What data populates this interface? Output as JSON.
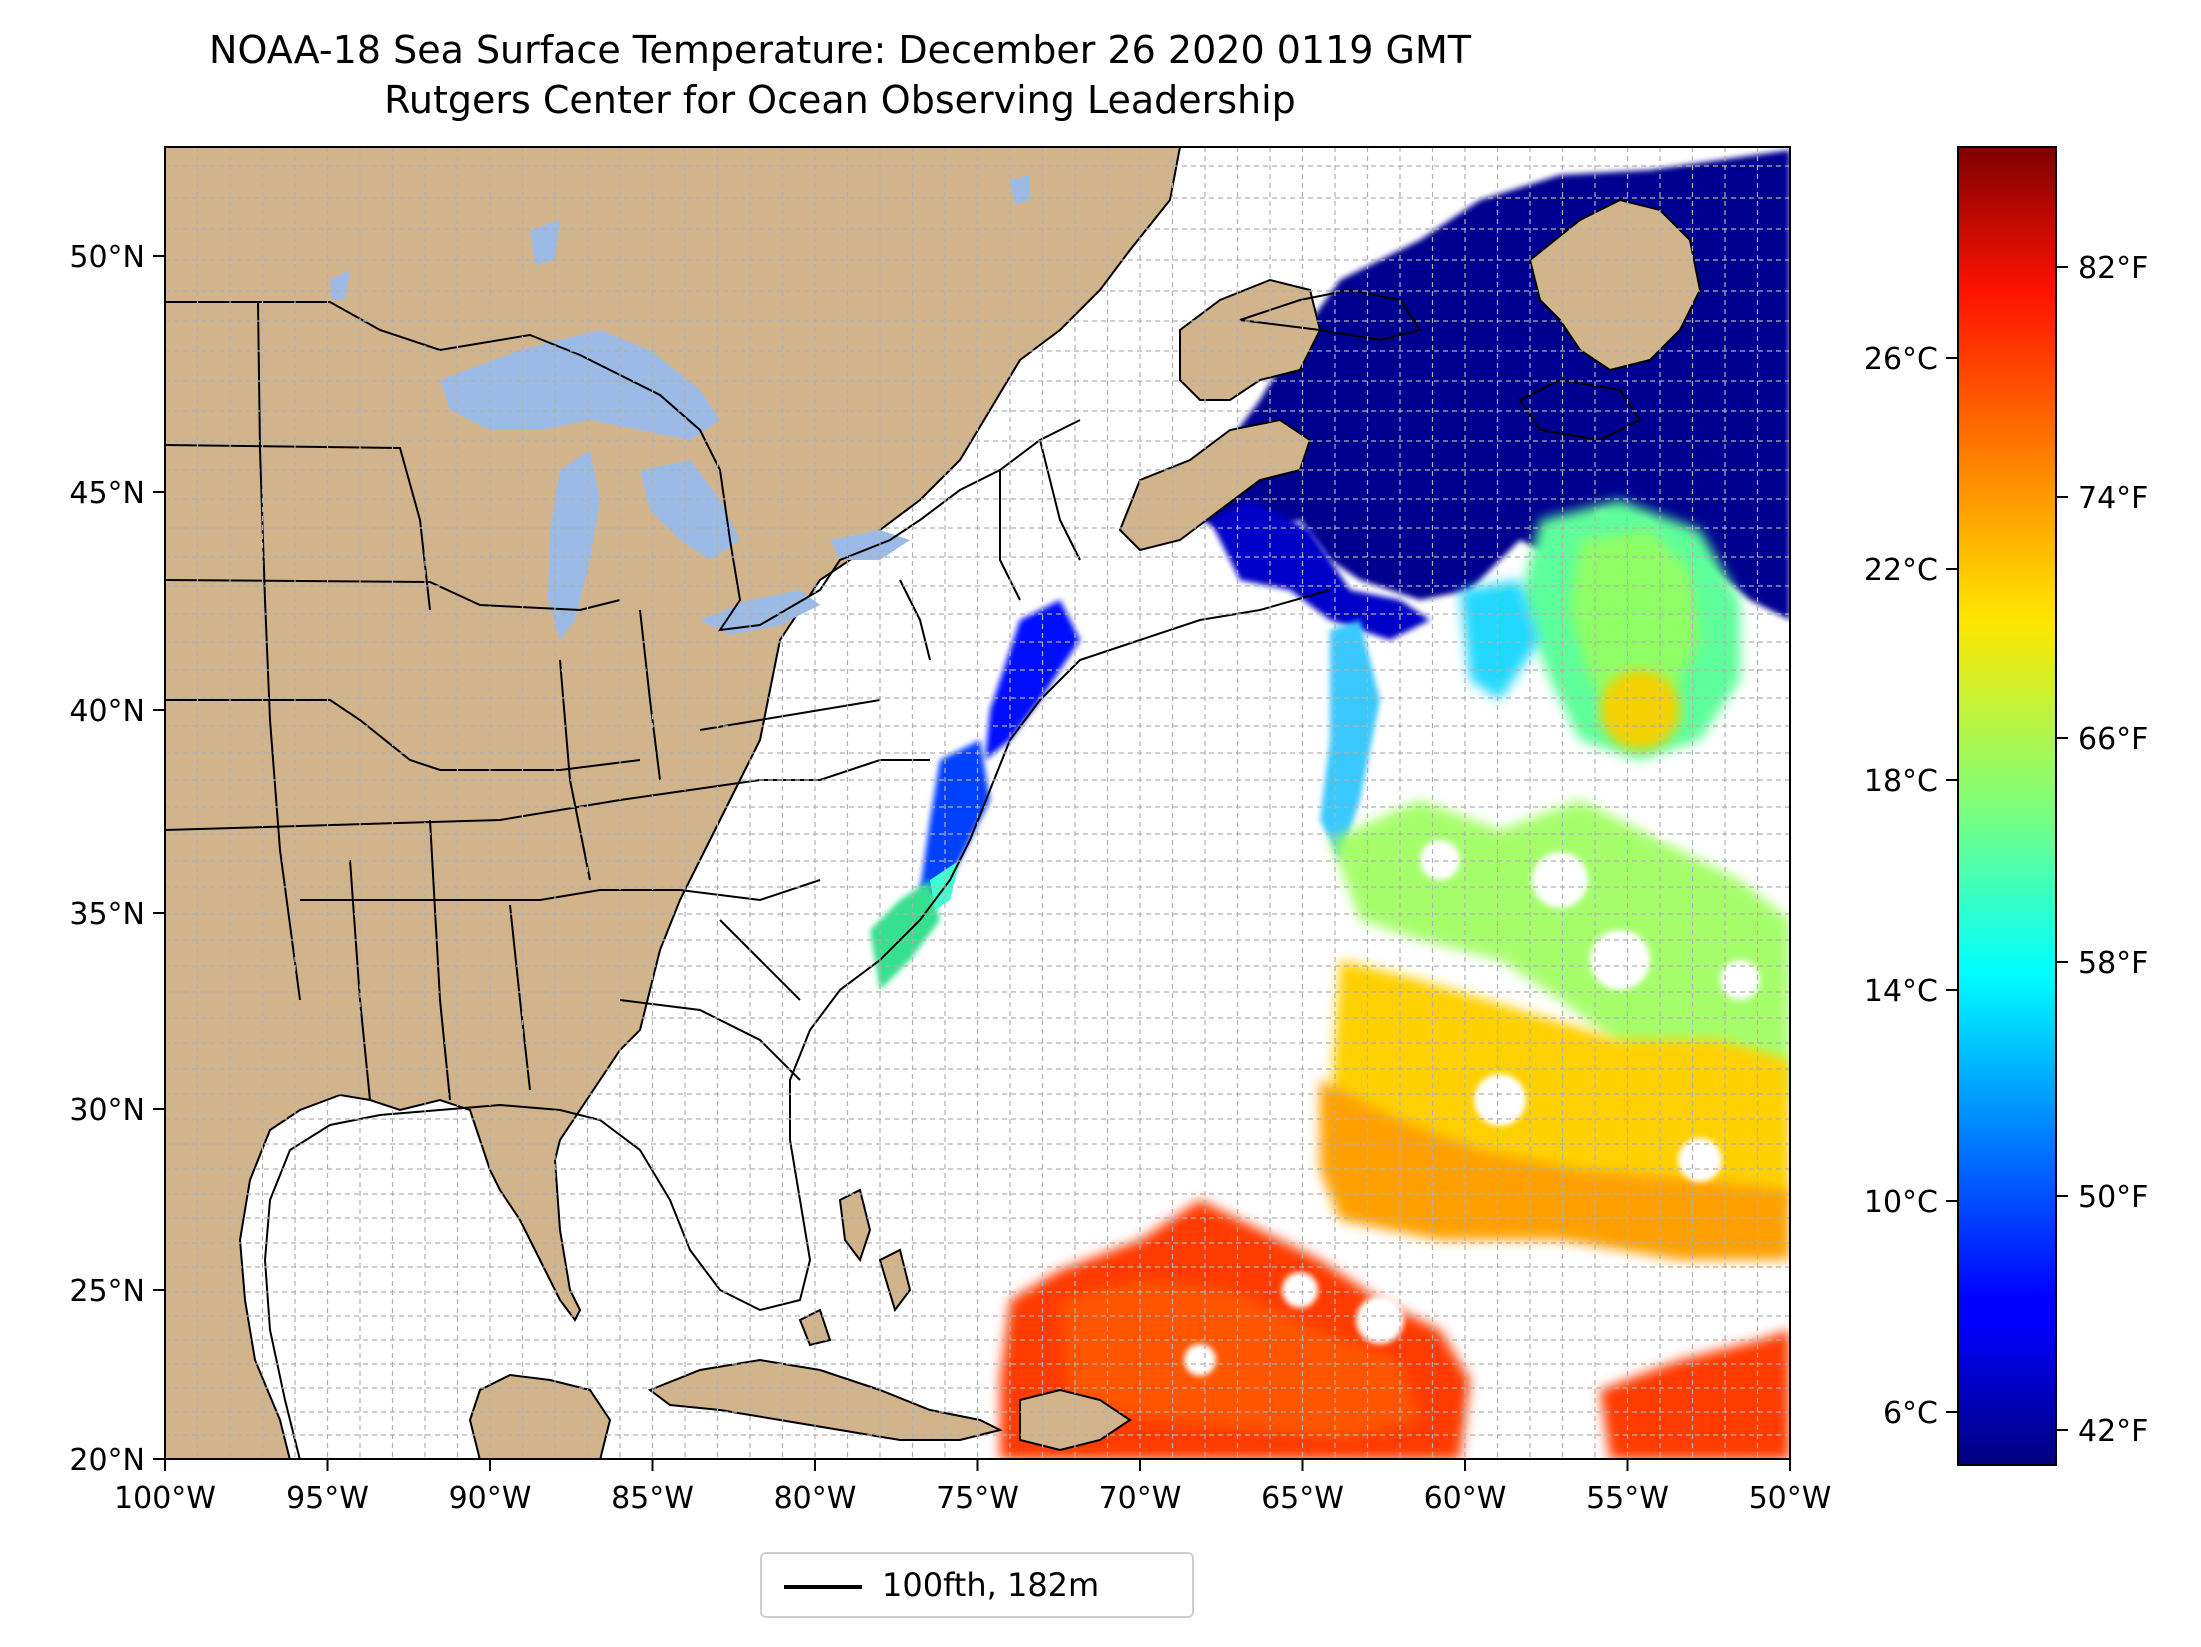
{
  "title": {
    "line1": "NOAA-18 Sea Surface Temperature: December 26 2020 0119 GMT",
    "line2": "Rutgers Center for Ocean Observing Leadership"
  },
  "map": {
    "lon_range": [
      -100,
      -50
    ],
    "lat_range": [
      20,
      52.2
    ],
    "lon_ticks": [
      "100°W",
      "95°W",
      "90°W",
      "85°W",
      "80°W",
      "75°W",
      "70°W",
      "65°W",
      "60°W",
      "55°W",
      "50°W"
    ],
    "lat_ticks": [
      "20°N",
      "25°N",
      "30°N",
      "35°N",
      "40°N",
      "45°N",
      "50°N"
    ],
    "gridlines": true,
    "colors": {
      "land": "#d2b48c",
      "lakes": "#9bbbe6",
      "ocean_nodata": "#ffffff",
      "grid": "#b0b0b0",
      "border": "#000000"
    }
  },
  "colorbar": {
    "colormap": "jet",
    "celsius_ticks": [
      "6°C",
      "10°C",
      "14°C",
      "18°C",
      "22°C",
      "26°C"
    ],
    "fahrenheit_ticks": [
      "42°F",
      "50°F",
      "58°F",
      "66°F",
      "74°F",
      "82°F"
    ],
    "range_c": [
      5.0,
      30.0
    ]
  },
  "legend": {
    "label": "100fth, 182m",
    "position": "lower-center"
  }
}
